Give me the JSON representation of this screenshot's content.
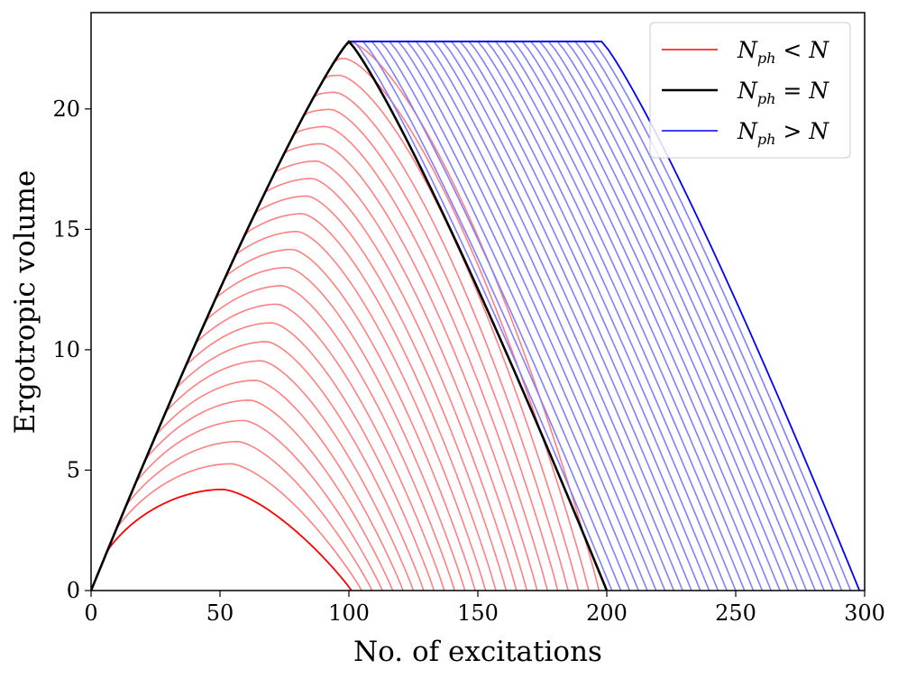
{
  "chart_data": {
    "type": "line",
    "xlabel": "No. of excitations",
    "ylabel": "Ergotropic volume",
    "xlim": [
      0,
      300
    ],
    "ylim": [
      0,
      24
    ],
    "xticks": [
      "0",
      "50",
      "100",
      "150",
      "200",
      "250",
      "300"
    ],
    "yticks": [
      "0",
      "5",
      "10",
      "15",
      "20"
    ],
    "legend_position": "top-right",
    "legend": [
      {
        "key": "lt",
        "label_main": "N",
        "label_sub": "ph",
        "label_rel": " < N",
        "color": "#ff0000"
      },
      {
        "key": "eq",
        "label_main": "N",
        "label_sub": "ph",
        "label_rel": " = N",
        "color": "#000000"
      },
      {
        "key": "gt",
        "label_main": "N",
        "label_sub": "ph",
        "label_rel": " > N",
        "color": "#0000ff"
      }
    ],
    "family": {
      "N": 100,
      "peak_value": 22.8,
      "lower_series": {
        "count": 25,
        "first_end_x": 101,
        "last_end_x": 197,
        "first_peak": [
          51,
          4.2
        ],
        "color_first": "#ff0000",
        "color_rest": "#ff8080"
      },
      "equal_series": {
        "points": [
          [
            0,
            0
          ],
          [
            100,
            22.8
          ],
          [
            200,
            0
          ]
        ],
        "color": "#000000"
      },
      "upper_series": {
        "count": 29,
        "first_end_x": 202,
        "last_end_x": 298,
        "plateau_y": 22.8,
        "color_rest": "#8080ff",
        "color_last": "#0000ff"
      }
    }
  }
}
